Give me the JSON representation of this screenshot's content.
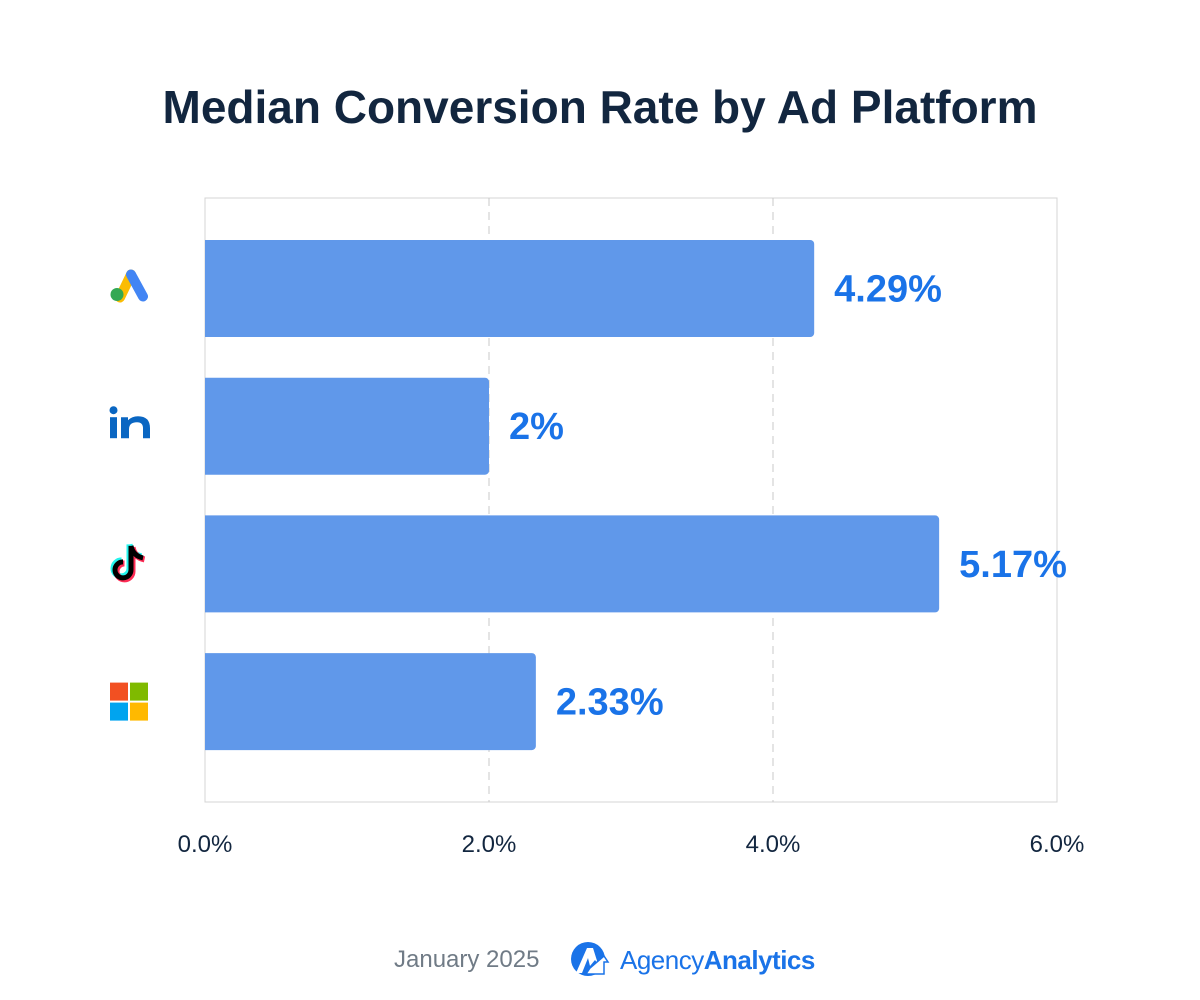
{
  "chart_data": {
    "type": "bar",
    "orientation": "horizontal",
    "title": "Median Conversion Rate by Ad Platform",
    "categories": [
      {
        "icon": "google-ads-icon"
      },
      {
        "icon": "linkedin-icon"
      },
      {
        "icon": "tiktok-icon"
      },
      {
        "icon": "microsoft-icon"
      }
    ],
    "values": [
      4.29,
      2,
      5.17,
      2.33
    ],
    "data_labels": [
      "4.29%",
      "2%",
      "5.17%",
      "2.33%"
    ],
    "xlim": [
      0,
      6
    ],
    "x_ticks": [
      0,
      2,
      4,
      6
    ],
    "x_tick_labels": [
      "0.0%",
      "2.0%",
      "4.0%",
      "6.0%"
    ],
    "xlabel": "",
    "ylabel": "",
    "grid": "vertical dashed",
    "colors": {
      "bar": "#6098ea",
      "label": "#1a73e8",
      "title": "#12263f",
      "tick": "#12263f"
    }
  },
  "footer": {
    "date": "January 2025",
    "brand_light": "Agency",
    "brand_bold": "Analytics"
  }
}
